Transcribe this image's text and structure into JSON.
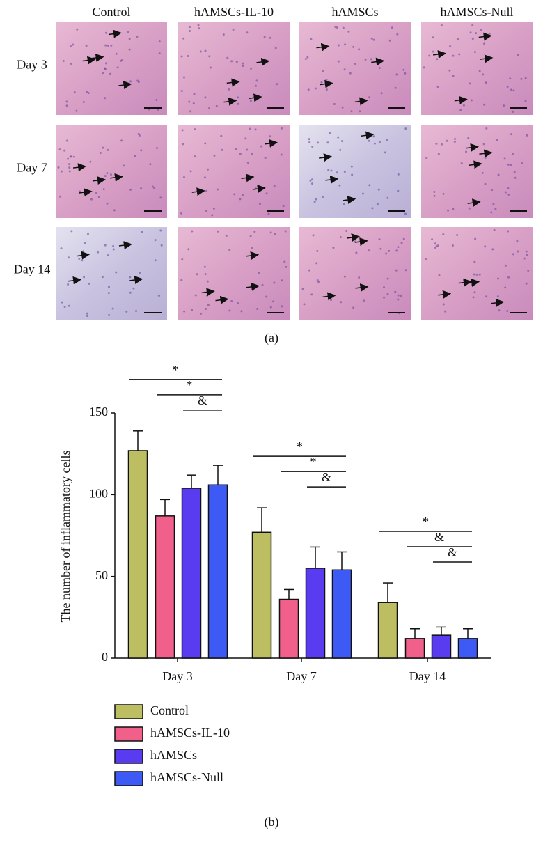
{
  "panel_a": {
    "columns": [
      "Control",
      "hAMSCs-IL-10",
      "hAMSCs",
      "hAMSCs-Null"
    ],
    "rows": [
      "Day 3",
      "Day 7",
      "Day 14"
    ],
    "caption": "(a)"
  },
  "chart_data": {
    "type": "bar",
    "ylabel": "The number of inflammatory cells",
    "categories": [
      "Day 3",
      "Day 7",
      "Day 14"
    ],
    "series": [
      {
        "name": "Control",
        "color": "#bdbd62",
        "values": [
          127,
          77,
          34
        ],
        "errors": [
          12,
          15,
          12
        ]
      },
      {
        "name": "hAMSCs-IL-10",
        "color": "#f0608a",
        "values": [
          87,
          36,
          12
        ],
        "errors": [
          10,
          6,
          6
        ]
      },
      {
        "name": "hAMSCs",
        "color": "#5a3cf0",
        "values": [
          104,
          55,
          14
        ],
        "errors": [
          8,
          13,
          5
        ]
      },
      {
        "name": "hAMSCs-Null",
        "color": "#3d5af5",
        "values": [
          106,
          54,
          12
        ],
        "errors": [
          12,
          11,
          6
        ]
      }
    ],
    "annotations": [
      [
        "*",
        "*",
        "&"
      ],
      [
        "*",
        "*",
        "&"
      ],
      [
        "*",
        "&",
        "&"
      ]
    ],
    "ylim": [
      0,
      150
    ],
    "yticks": [
      0,
      50,
      100,
      150
    ],
    "caption": "(b)"
  }
}
